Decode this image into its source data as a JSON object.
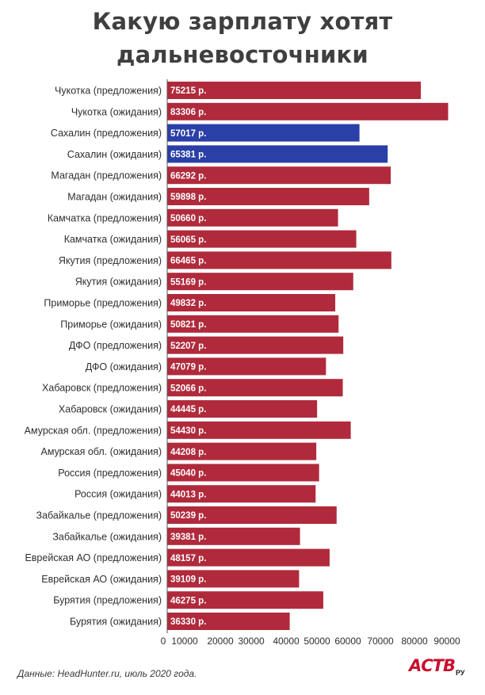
{
  "title_line1": "Какую зарплату хотят",
  "title_line2": "дальневосточники",
  "source": "Данные: HeadHunter.ru, июль 2020 года.",
  "logo": {
    "main": "АСТВ",
    "sub": "РУ"
  },
  "colors": {
    "default_bar": "#b02a3c",
    "highlight_bar": "#2a3fa7",
    "axis": "#555555"
  },
  "chart_data": {
    "type": "bar",
    "orientation": "horizontal",
    "title": "Какую зарплату хотят дальневосточники",
    "value_suffix": " р.",
    "highlight": [
      "Сахалин (предложения)",
      "Сахалин (ожидания)"
    ],
    "categories": [
      "Чукотка (предложения)",
      "Чукотка (ожидания)",
      "Сахалин (предложения)",
      "Сахалин (ожидания)",
      "Магадан (предложения)",
      "Магадан (ожидания)",
      "Камчатка (предложения)",
      "Камчатка (ожидания)",
      "Якутия (предложения)",
      "Якутия (ожидания)",
      "Приморье (предложения)",
      "Приморье (ожидания)",
      "ДФО (предложения)",
      "ДФО (ожидания)",
      "Хабаровск (предложения)",
      "Хабаровск (ожидания)",
      "Амурская обл. (предложения)",
      "Амурская обл. (ожидания)",
      "Россия (предложения)",
      "Россия (ожидания)",
      "Забайкалье (предложения)",
      "Забайкалье (ожидания)",
      "Еврейская АО (предложения)",
      "Еврейская АО (ожидания)",
      "Бурятия (предложения)",
      "Бурятия (ожидания)"
    ],
    "values": [
      75215,
      83306,
      57017,
      65381,
      66292,
      59898,
      50660,
      56065,
      66465,
      55169,
      49832,
      50821,
      52207,
      47079,
      52066,
      44445,
      54430,
      44208,
      45040,
      44013,
      50239,
      39381,
      48157,
      39109,
      46275,
      36330
    ],
    "xlim": [
      0,
      95000
    ],
    "xticks": [
      0,
      10000,
      20000,
      30000,
      40000,
      50000,
      60000,
      70000,
      80000,
      90000
    ],
    "grid": false,
    "legend": "none"
  }
}
